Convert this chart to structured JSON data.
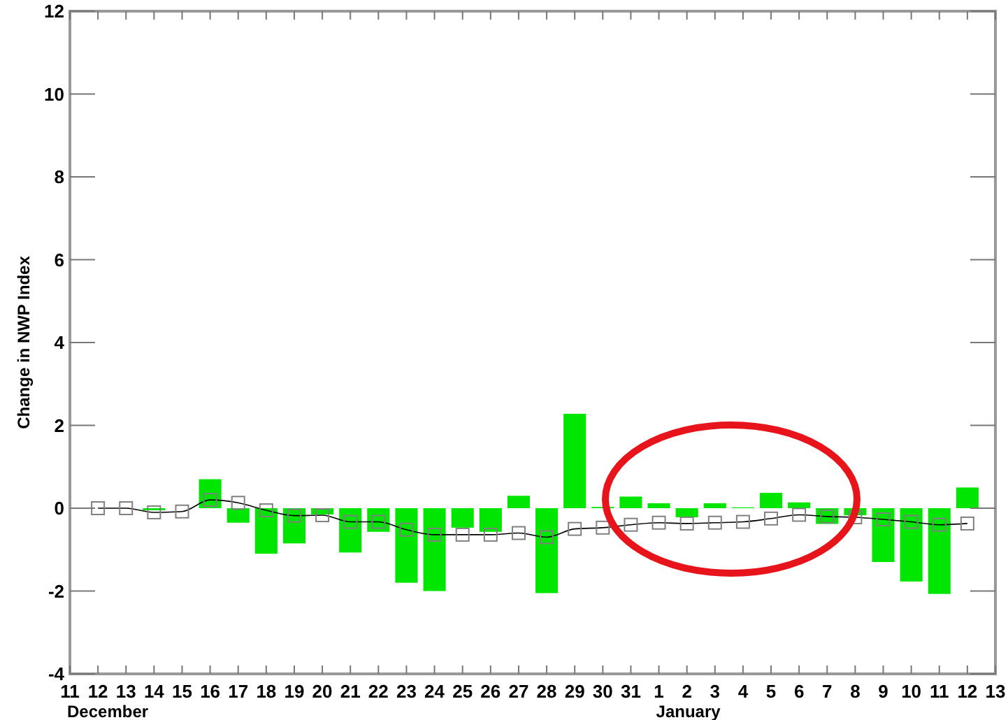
{
  "chart_data": {
    "type": "bar",
    "ylabel": "Change in NWP Index",
    "categories": [
      "11",
      "12",
      "13",
      "14",
      "15",
      "16",
      "17",
      "18",
      "19",
      "20",
      "21",
      "22",
      "23",
      "24",
      "25",
      "26",
      "27",
      "28",
      "29",
      "30",
      "31",
      "1",
      "2",
      "3",
      "4",
      "5",
      "6",
      "7",
      "8",
      "9",
      "10",
      "11",
      "12",
      "13"
    ],
    "series": [
      {
        "color": "#00e600",
        "values": [
          null,
          0,
          0,
          -0.05,
          0,
          0.7,
          -0.35,
          -1.1,
          -0.85,
          -0.15,
          -1.07,
          -0.57,
          -1.8,
          -2.0,
          -0.47,
          -0.57,
          0.3,
          -2.05,
          2.28,
          0.03,
          0.28,
          0.12,
          -0.22,
          0.12,
          0.02,
          0.37,
          0.14,
          -0.38,
          -0.17,
          -1.3,
          -1.77,
          -2.07,
          0.5,
          null
        ]
      },
      {
        "type": "line",
        "color": "#808080",
        "marker": "square",
        "values": [
          null,
          0,
          0,
          -0.1,
          -0.08,
          0.2,
          0.13,
          -0.05,
          -0.18,
          -0.17,
          -0.33,
          -0.33,
          -0.52,
          -0.64,
          -0.64,
          -0.64,
          -0.6,
          -0.7,
          -0.5,
          -0.47,
          -0.4,
          -0.35,
          -0.37,
          -0.35,
          -0.33,
          -0.25,
          -0.16,
          -0.2,
          -0.22,
          -0.27,
          -0.33,
          -0.4,
          -0.37,
          null
        ]
      }
    ],
    "ylim": [
      -4,
      12
    ],
    "yticks": [
      -4,
      -2,
      0,
      2,
      4,
      6,
      8,
      10,
      12
    ],
    "annotations": [
      "December",
      "January"
    ],
    "grid": false
  }
}
